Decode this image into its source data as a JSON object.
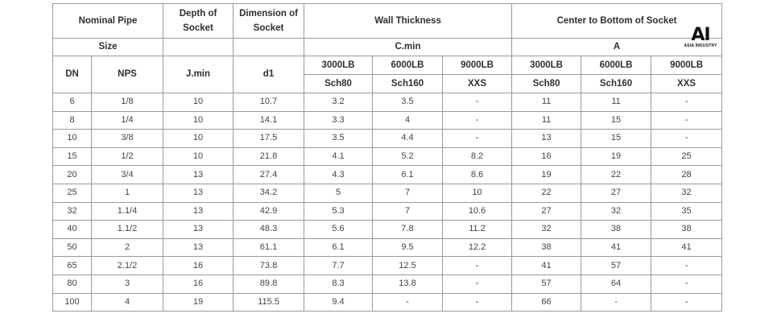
{
  "headers": {
    "nominal_pipe": "Nominal Pipe",
    "depth_of_socket": "Depth of Socket",
    "dimension_of_socket": "Dimension of Socket",
    "wall_thickness": "Wall Thickness",
    "center_to_bottom": "Center to Bottom of Socket",
    "size": "Size",
    "c_min": "C.min",
    "a": "A",
    "dn": "DN",
    "nps": "NPS",
    "j_min": "J.min",
    "d1": "d1",
    "class_3000": "3000LB",
    "class_6000": "6000LB",
    "class_9000": "9000LB",
    "sch80": "Sch80",
    "sch160": "Sch160",
    "xxs": "XXS"
  },
  "rows": [
    {
      "dn": "6",
      "nps": "1/8",
      "j": "10",
      "d1": "10.7",
      "c3": "3.2",
      "c6": "3.5",
      "c9": "-",
      "a3": "11",
      "a6": "11",
      "a9": "-"
    },
    {
      "dn": "8",
      "nps": "1/4",
      "j": "10",
      "d1": "14.1",
      "c3": "3.3",
      "c6": "4",
      "c9": "-",
      "a3": "11",
      "a6": "15",
      "a9": "-"
    },
    {
      "dn": "10",
      "nps": "3/8",
      "j": "10",
      "d1": "17.5",
      "c3": "3.5",
      "c6": "4.4",
      "c9": "-",
      "a3": "13",
      "a6": "15",
      "a9": "-"
    },
    {
      "dn": "15",
      "nps": "1/2",
      "j": "10",
      "d1": "21.8",
      "c3": "4.1",
      "c6": "5.2",
      "c9": "8.2",
      "a3": "16",
      "a6": "19",
      "a9": "25"
    },
    {
      "dn": "20",
      "nps": "3/4",
      "j": "13",
      "d1": "27.4",
      "c3": "4.3",
      "c6": "6.1",
      "c9": "8.6",
      "a3": "19",
      "a6": "22",
      "a9": "28"
    },
    {
      "dn": "25",
      "nps": "1",
      "j": "13",
      "d1": "34.2",
      "c3": "5",
      "c6": "7",
      "c9": "10",
      "a3": "22",
      "a6": "27",
      "a9": "32"
    },
    {
      "dn": "32",
      "nps": "1.1/4",
      "j": "13",
      "d1": "42.9",
      "c3": "5.3",
      "c6": "7",
      "c9": "10.6",
      "a3": "27",
      "a6": "32",
      "a9": "35"
    },
    {
      "dn": "40",
      "nps": "1.1/2",
      "j": "13",
      "d1": "48.3",
      "c3": "5.6",
      "c6": "7.8",
      "c9": "11.2",
      "a3": "32",
      "a6": "38",
      "a9": "38"
    },
    {
      "dn": "50",
      "nps": "2",
      "j": "13",
      "d1": "61.1",
      "c3": "6.1",
      "c6": "9.5",
      "c9": "12.2",
      "a3": "38",
      "a6": "41",
      "a9": "41"
    },
    {
      "dn": "65",
      "nps": "2.1/2",
      "j": "16",
      "d1": "73.8",
      "c3": "7.7",
      "c6": "12.5",
      "c9": "-",
      "a3": "41",
      "a6": "57",
      "a9": "-"
    },
    {
      "dn": "80",
      "nps": "3",
      "j": "16",
      "d1": "89.8",
      "c3": "8.3",
      "c6": "13.8",
      "c9": "-",
      "a3": "57",
      "a6": "64",
      "a9": "-"
    },
    {
      "dn": "100",
      "nps": "4",
      "j": "19",
      "d1": "115.5",
      "c3": "9.4",
      "c6": "-",
      "c9": "-",
      "a3": "66",
      "a6": "-",
      "a9": "-"
    }
  ],
  "logo": {
    "mark": "AI",
    "text": "ASIA INDUSTRY"
  }
}
